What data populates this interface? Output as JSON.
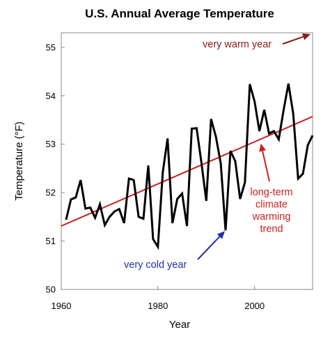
{
  "chart_data": {
    "type": "line",
    "title": "U.S. Annual Average Temperature",
    "xlabel": "Year",
    "ylabel": "Temperature (°F)",
    "xlim": [
      1960,
      2012
    ],
    "ylim": [
      50,
      55.3
    ],
    "x_ticks": [
      "1960",
      "1980",
      "2000"
    ],
    "y_ticks": [
      "50",
      "51",
      "52",
      "53",
      "54",
      "55"
    ],
    "grid": false,
    "series": [
      {
        "color": "#000000",
        "x": [
          1961,
          1962,
          1963,
          1964,
          1965,
          1966,
          1967,
          1968,
          1969,
          1970,
          1971,
          1972,
          1973,
          1974,
          1975,
          1976,
          1977,
          1978,
          1979,
          1980,
          1981,
          1982,
          1983,
          1984,
          1985,
          1986,
          1987,
          1988,
          1989,
          1990,
          1991,
          1992,
          1993,
          1994,
          1995,
          1996,
          1997,
          1998,
          1999,
          2000,
          2001,
          2002,
          2003,
          2004,
          2005,
          2006,
          2007,
          2008,
          2009,
          2010,
          2011,
          2012
        ],
        "y": [
          51.44,
          51.86,
          51.9,
          52.26,
          51.67,
          51.69,
          51.48,
          51.76,
          51.33,
          51.5,
          51.61,
          51.66,
          51.37,
          52.29,
          52.26,
          51.5,
          51.46,
          52.56,
          51.04,
          50.88,
          52.42,
          53.12,
          51.37,
          51.87,
          51.98,
          51.31,
          53.32,
          53.33,
          52.62,
          51.83,
          53.52,
          53.15,
          52.6,
          51.22,
          52.86,
          52.65,
          51.87,
          52.21,
          54.24,
          53.88,
          53.27,
          53.71,
          53.22,
          53.27,
          53.1,
          53.7,
          54.25,
          53.63,
          52.29,
          52.39,
          52.98,
          53.18
        ]
      },
      {
        "color": "#cc1f1f",
        "x": [
          1960,
          2012
        ],
        "y": [
          51.31,
          53.57
        ]
      }
    ],
    "annotations": [
      {
        "text": "very warm year",
        "color": "#8b1a1a",
        "target": [
          2012,
          55.3
        ]
      },
      {
        "text": "very cold year",
        "color": "#1f2fa8",
        "target": [
          1994,
          51.22
        ]
      },
      {
        "lines": [
          "long-term",
          "climate",
          "warming",
          "trend"
        ],
        "color": "#cc1f1f",
        "target": [
          2001,
          53.1
        ]
      }
    ]
  }
}
